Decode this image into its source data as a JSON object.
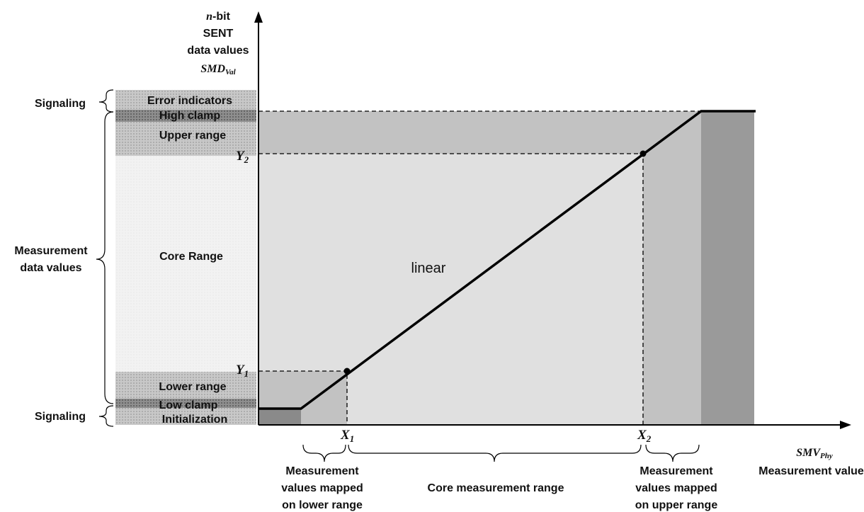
{
  "y_axis": {
    "n_bit": {
      "var": "n",
      "rest": "-bit"
    },
    "lines": [
      "SENT",
      "data values"
    ],
    "symbol": {
      "main": "SMD",
      "sub": "Val"
    }
  },
  "bands": [
    "Error indicators",
    "High clamp",
    "Upper range",
    "Core Range",
    "Lower range",
    "Low clamp",
    "Initialization"
  ],
  "groups": {
    "signaling_top": "Signaling",
    "measurement": [
      "Measurement",
      "data values"
    ],
    "signaling_bottom": "Signaling"
  },
  "points": {
    "Y2": {
      "main": "Y",
      "sub": "2"
    },
    "Y1": {
      "main": "Y",
      "sub": "1"
    },
    "X1": {
      "main": "X",
      "sub": "1"
    },
    "X2": {
      "main": "X",
      "sub": "2"
    }
  },
  "x_axis": {
    "symbol": {
      "main": "SMV",
      "sub": "Phy"
    },
    "title": "Measurement values"
  },
  "curve_label": "linear",
  "bottom_ranges": [
    [
      "Measurement",
      "values mapped",
      "on lower range"
    ],
    [
      "Core measurement range"
    ],
    [
      "Measurement",
      "values mapped",
      "on upper range"
    ]
  ]
}
